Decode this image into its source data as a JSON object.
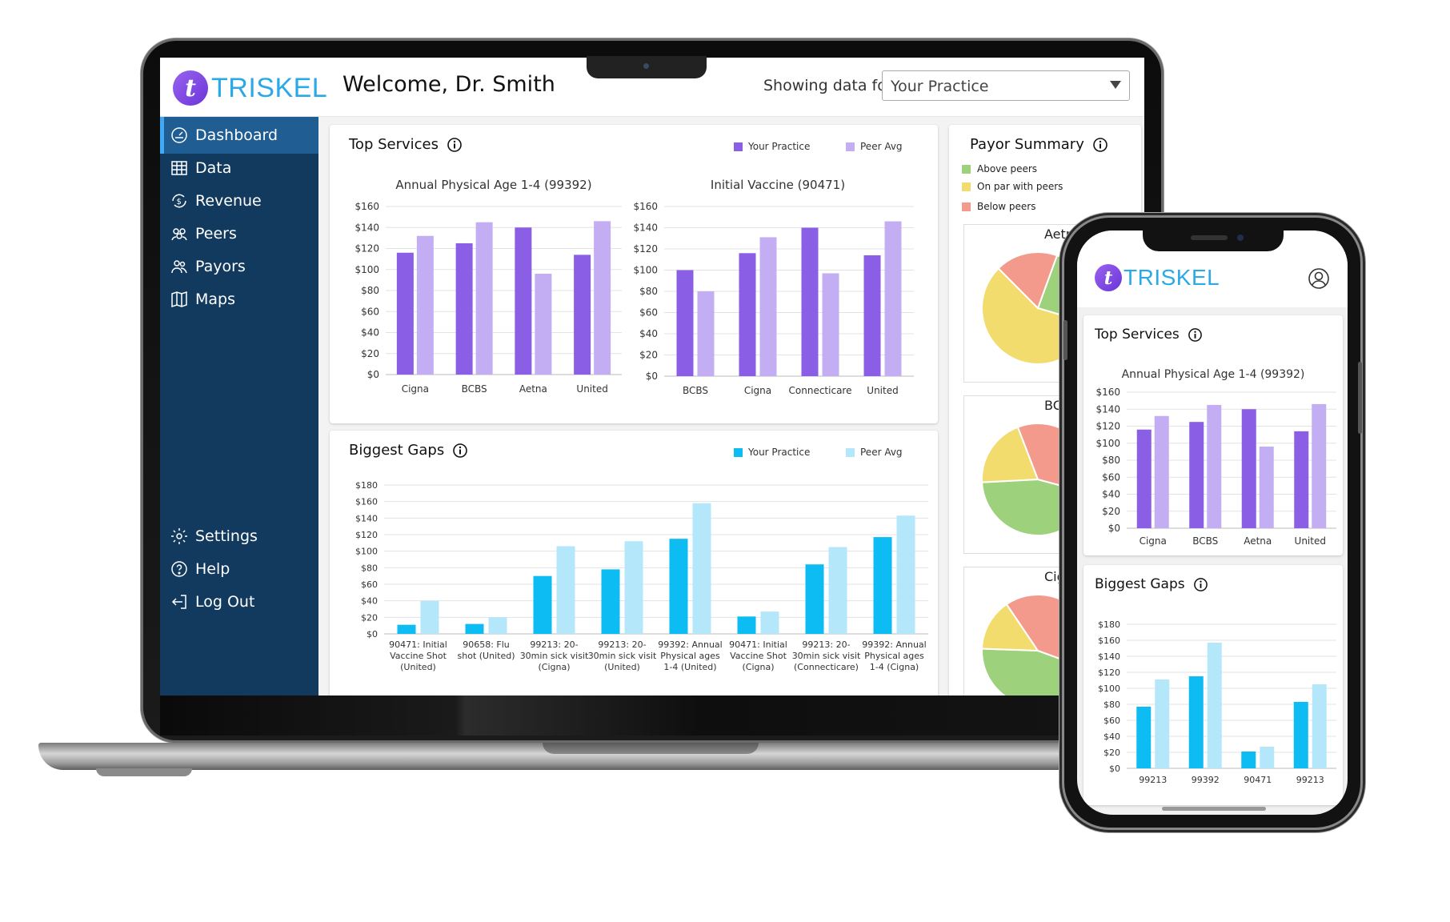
{
  "brand": {
    "name": "TRISKEL",
    "mark": "t"
  },
  "header": {
    "welcome": "Welcome, Dr. Smith",
    "showing_label": "Showing data for",
    "practice_selected": "Your Practice"
  },
  "sidebar": {
    "items": [
      {
        "label": "Dashboard",
        "icon": "speedometer-icon",
        "active": true
      },
      {
        "label": "Data",
        "icon": "table-icon"
      },
      {
        "label": "Revenue",
        "icon": "dollar-refresh-icon"
      },
      {
        "label": "Peers",
        "icon": "group-icon"
      },
      {
        "label": "Payors",
        "icon": "handshake-icon"
      },
      {
        "label": "Maps",
        "icon": "map-icon"
      }
    ],
    "bottom_items": [
      {
        "label": "Settings",
        "icon": "gear-icon"
      },
      {
        "label": "Help",
        "icon": "help-circle-icon"
      },
      {
        "label": "Log Out",
        "icon": "logout-icon"
      }
    ]
  },
  "top_services": {
    "title": "Top Services",
    "legend": {
      "your_practice": "Your Practice",
      "peer_avg": "Peer Avg"
    }
  },
  "biggest_gaps": {
    "title": "Biggest Gaps",
    "legend": {
      "your_practice": "Your Practice",
      "peer_avg": "Peer Avg"
    }
  },
  "payor_summary": {
    "title": "Payor Summary",
    "legend": [
      {
        "label": "Above peers",
        "color": "#9ed17c"
      },
      {
        "label": "On par with peers",
        "color": "#f2dc6e"
      },
      {
        "label": "Below peers",
        "color": "#f49a8c"
      }
    ],
    "pies": [
      {
        "label": "Aetna"
      },
      {
        "label": "BCBS"
      },
      {
        "label": "Cigna"
      }
    ]
  },
  "colors": {
    "sidebar": "#123a5e",
    "sidebar_active": "#1f5d92",
    "your_practice_purple": "#8a5fe6",
    "peer_avg_purple": "#c4aef3",
    "your_practice_blue": "#0dbcf2",
    "peer_avg_blue": "#b5e7fb",
    "brand_blue": "#2ba9e7"
  },
  "chart_data": [
    {
      "id": "annual-physical",
      "type": "bar",
      "title": "Annual Physical Age 1-4 (99392)",
      "categories": [
        "Cigna",
        "BCBS",
        "Aetna",
        "United"
      ],
      "series": [
        {
          "name": "Your Practice",
          "values": [
            116,
            125,
            140,
            114
          ]
        },
        {
          "name": "Peer Avg",
          "values": [
            132,
            145,
            96,
            146
          ]
        }
      ],
      "ylim": [
        0,
        160
      ],
      "yticks": [
        "$0",
        "$20",
        "$40",
        "$60",
        "$80",
        "$100",
        "$120",
        "$140",
        "$160"
      ],
      "grid": true
    },
    {
      "id": "initial-vaccine",
      "type": "bar",
      "title": "Initial Vaccine (90471)",
      "categories": [
        "BCBS",
        "Cigna",
        "Connecticare",
        "United"
      ],
      "series": [
        {
          "name": "Your Practice",
          "values": [
            100,
            116,
            140,
            114
          ]
        },
        {
          "name": "Peer Avg",
          "values": [
            80,
            131,
            97,
            146
          ]
        }
      ],
      "ylim": [
        0,
        160
      ],
      "yticks": [
        "$0",
        "$20",
        "$40",
        "$60",
        "$80",
        "$100",
        "$120",
        "$140",
        "$160"
      ],
      "grid": true
    },
    {
      "id": "biggest-gaps",
      "type": "bar",
      "title": "",
      "categories": [
        [
          "90471: Initial",
          "Vaccine Shot",
          "(United)"
        ],
        [
          "90658: Flu",
          "shot (United)"
        ],
        [
          "99213: 20-",
          "30min sick visit",
          "(Cigna)"
        ],
        [
          "99213: 20-",
          "30min sick visit",
          "(United)"
        ],
        [
          "99392: Annual",
          "Physical ages",
          "1-4 (United)"
        ],
        [
          "90471: Initial",
          "Vaccine Shot",
          "(Cigna)"
        ],
        [
          "99213: 20-",
          "30min sick visit",
          "(Connecticare)"
        ],
        [
          "99392: Annual",
          "Physical ages",
          "1-4 (Cigna)"
        ]
      ],
      "series": [
        {
          "name": "Your Practice",
          "values": [
            11,
            12,
            70,
            78,
            115,
            21,
            84,
            117
          ]
        },
        {
          "name": "Peer Avg",
          "values": [
            40,
            20,
            106,
            112,
            158,
            27,
            105,
            143
          ]
        }
      ],
      "ylim": [
        0,
        180
      ],
      "yticks": [
        "$0",
        "$20",
        "$40",
        "$60",
        "$80",
        "$100",
        "$120",
        "$140",
        "$160",
        "$180"
      ],
      "grid": true
    },
    {
      "id": "payor-pies",
      "type": "pie",
      "pies": [
        {
          "label": "Aetna",
          "slices": [
            {
              "name": "Above peers",
              "value": 24
            },
            {
              "name": "On par with peers",
              "value": 58
            },
            {
              "name": "Below peers",
              "value": 18
            }
          ],
          "start_deg": -70
        },
        {
          "label": "BCBS",
          "slices": [
            {
              "name": "Above peers",
              "value": 45
            },
            {
              "name": "On par with peers",
              "value": 20
            },
            {
              "name": "Below peers",
              "value": 35
            }
          ],
          "start_deg": 15
        },
        {
          "label": "Cigna",
          "slices": [
            {
              "name": "Above peers",
              "value": 45
            },
            {
              "name": "On par with peers",
              "value": 15
            },
            {
              "name": "Below peers",
              "value": 40
            }
          ],
          "start_deg": 20
        }
      ]
    },
    {
      "id": "phone-annual-physical",
      "type": "bar",
      "title": "Annual Physical Age 1-4 (99392)",
      "categories": [
        "Cigna",
        "BCBS",
        "Aetna",
        "United"
      ],
      "series": [
        {
          "name": "Your Practice",
          "values": [
            116,
            125,
            140,
            114
          ]
        },
        {
          "name": "Peer Avg",
          "values": [
            132,
            145,
            96,
            146
          ]
        }
      ],
      "ylim": [
        0,
        160
      ],
      "yticks": [
        "$0",
        "$20",
        "$40",
        "$60",
        "$80",
        "$100",
        "$120",
        "$140",
        "$160"
      ],
      "grid": true
    },
    {
      "id": "phone-biggest-gaps",
      "type": "bar",
      "title": "",
      "categories": [
        "99213",
        "99392",
        "90471",
        "99213"
      ],
      "series": [
        {
          "name": "Your Practice",
          "values": [
            77,
            115,
            21,
            83
          ]
        },
        {
          "name": "Peer Avg",
          "values": [
            111,
            157,
            27,
            105
          ]
        }
      ],
      "ylim": [
        0,
        180
      ],
      "yticks": [
        "$0",
        "$20",
        "$40",
        "$60",
        "$80",
        "$100",
        "$120",
        "$140",
        "$160",
        "$180"
      ],
      "grid": true
    }
  ],
  "phone": {
    "top_services_title": "Top Services",
    "biggest_gaps_title": "Biggest Gaps",
    "profile_icon": "user-circle-icon"
  }
}
